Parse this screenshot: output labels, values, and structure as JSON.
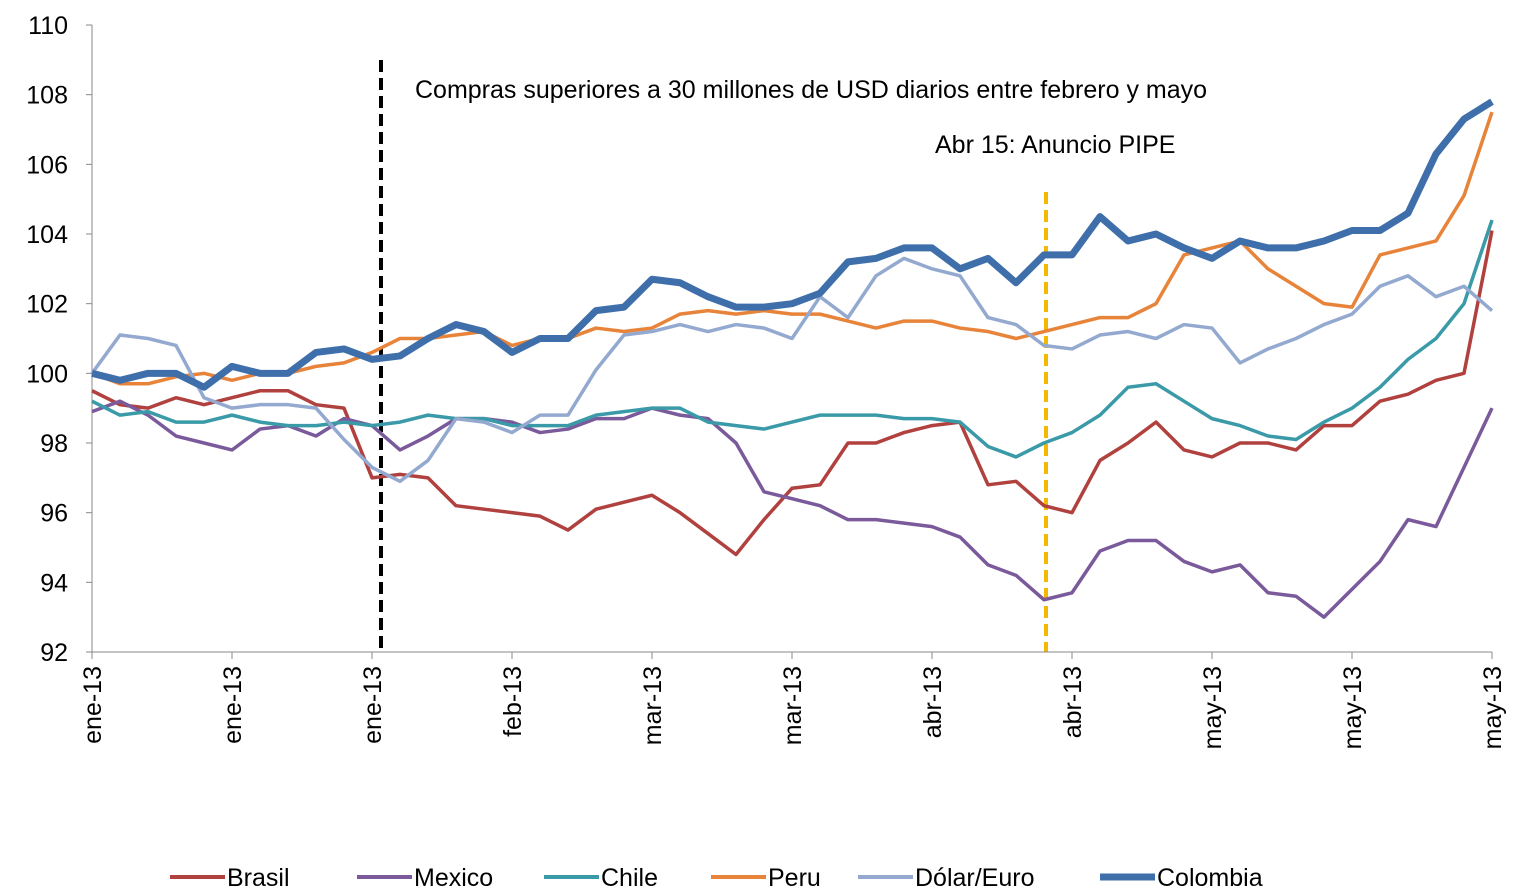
{
  "chart_data": {
    "type": "line",
    "annotations": [
      "Compras superiores a 30 millones de USD diarios entre febrero y mayo",
      "Abr 15: Anuncio PIPE"
    ],
    "categories": [
      "ene-13",
      null,
      null,
      null,
      null,
      "ene-13",
      null,
      null,
      null,
      null,
      "ene-13",
      null,
      null,
      null,
      null,
      "feb-13",
      null,
      null,
      null,
      null,
      "mar-13",
      null,
      null,
      null,
      null,
      "mar-13",
      null,
      null,
      null,
      null,
      "abr-13",
      null,
      null,
      null,
      null,
      "abr-13",
      null,
      null,
      null,
      null,
      "may-13",
      null,
      null,
      null,
      null,
      "may-13",
      null,
      null,
      null,
      null,
      "may-13"
    ],
    "ylim": [
      92,
      110
    ],
    "yticks": [
      92,
      94,
      96,
      98,
      100,
      102,
      104,
      106,
      108,
      110
    ],
    "series": [
      {
        "name": "Brasil",
        "color": "#b0413e",
        "values": [
          99.5,
          99.1,
          99.0,
          99.3,
          99.1,
          99.3,
          99.5,
          99.5,
          99.1,
          99.0,
          97.0,
          97.1,
          97.0,
          96.2,
          96.1,
          96.0,
          95.9,
          95.5,
          96.1,
          96.3,
          96.5,
          96.0,
          95.4,
          94.8,
          95.8,
          96.7,
          96.8,
          98.0,
          98.0,
          98.3,
          98.5,
          98.6,
          96.8,
          96.9,
          96.2,
          96.0,
          97.5,
          98.0,
          98.6,
          97.8,
          97.6,
          98.0,
          98.0,
          97.8,
          98.5,
          98.5,
          99.2,
          99.4,
          99.8,
          100.0,
          104.1
        ]
      },
      {
        "name": "Mexico",
        "color": "#7a5a9a",
        "values": [
          98.9,
          99.2,
          98.8,
          98.2,
          98.0,
          97.8,
          98.4,
          98.5,
          98.2,
          98.7,
          98.5,
          97.8,
          98.2,
          98.7,
          98.7,
          98.6,
          98.3,
          98.4,
          98.7,
          98.7,
          99.0,
          98.8,
          98.7,
          98.0,
          96.6,
          96.4,
          96.2,
          95.8,
          95.8,
          95.7,
          95.6,
          95.3,
          94.5,
          94.2,
          93.5,
          93.7,
          94.9,
          95.2,
          95.2,
          94.6,
          94.3,
          94.5,
          93.7,
          93.6,
          93.0,
          93.8,
          94.6,
          95.8,
          95.6,
          97.3,
          99.0
        ]
      },
      {
        "name": "Chile",
        "color": "#3a9aa8",
        "values": [
          99.2,
          98.8,
          98.9,
          98.6,
          98.6,
          98.8,
          98.6,
          98.5,
          98.5,
          98.6,
          98.5,
          98.6,
          98.8,
          98.7,
          98.7,
          98.5,
          98.5,
          98.5,
          98.8,
          98.9,
          99.0,
          99.0,
          98.6,
          98.5,
          98.4,
          98.6,
          98.8,
          98.8,
          98.8,
          98.7,
          98.7,
          98.6,
          97.9,
          97.6,
          98.0,
          98.3,
          98.8,
          99.6,
          99.7,
          99.2,
          98.7,
          98.5,
          98.2,
          98.1,
          98.6,
          99.0,
          99.6,
          100.4,
          101.0,
          102.0,
          104.4
        ]
      },
      {
        "name": "Peru",
        "color": "#e8843a",
        "values": [
          100.0,
          99.7,
          99.7,
          99.9,
          100.0,
          99.8,
          100.0,
          100.0,
          100.2,
          100.3,
          100.6,
          101.0,
          101.0,
          101.1,
          101.2,
          100.8,
          101.0,
          101.0,
          101.3,
          101.2,
          101.3,
          101.7,
          101.8,
          101.7,
          101.8,
          101.7,
          101.7,
          101.5,
          101.3,
          101.5,
          101.5,
          101.3,
          101.2,
          101.0,
          101.2,
          101.4,
          101.6,
          101.6,
          102.0,
          103.4,
          103.6,
          103.8,
          103.0,
          102.5,
          102.0,
          101.9,
          103.4,
          103.6,
          103.8,
          105.1,
          107.5
        ]
      },
      {
        "name": "Dólar/Euro",
        "color": "#93a9cf",
        "values": [
          100.0,
          101.1,
          101.0,
          100.8,
          99.3,
          99.0,
          99.1,
          99.1,
          99.0,
          98.1,
          97.3,
          96.9,
          97.5,
          98.7,
          98.6,
          98.3,
          98.8,
          98.8,
          100.1,
          101.1,
          101.2,
          101.4,
          101.2,
          101.4,
          101.3,
          101.0,
          102.2,
          101.6,
          102.8,
          103.3,
          103.0,
          102.8,
          101.6,
          101.4,
          100.8,
          100.7,
          101.1,
          101.2,
          101.0,
          101.4,
          101.3,
          100.3,
          100.7,
          101.0,
          101.4,
          101.7,
          102.5,
          102.8,
          102.2,
          102.5,
          101.8
        ]
      },
      {
        "name": "Colombia",
        "color": "#3f6faa",
        "values": [
          100.0,
          99.8,
          100.0,
          100.0,
          99.6,
          100.2,
          100.0,
          100.0,
          100.6,
          100.7,
          100.4,
          100.5,
          101.0,
          101.4,
          101.2,
          100.6,
          101.0,
          101.0,
          101.8,
          101.9,
          102.7,
          102.6,
          102.2,
          101.9,
          101.9,
          102.0,
          102.3,
          103.2,
          103.3,
          103.6,
          103.6,
          103.0,
          103.3,
          102.6,
          103.4,
          103.4,
          104.5,
          103.8,
          104.0,
          103.6,
          103.3,
          103.8,
          103.6,
          103.6,
          103.8,
          104.1,
          104.1,
          104.6,
          106.3,
          107.3,
          107.8
        ]
      }
    ]
  }
}
